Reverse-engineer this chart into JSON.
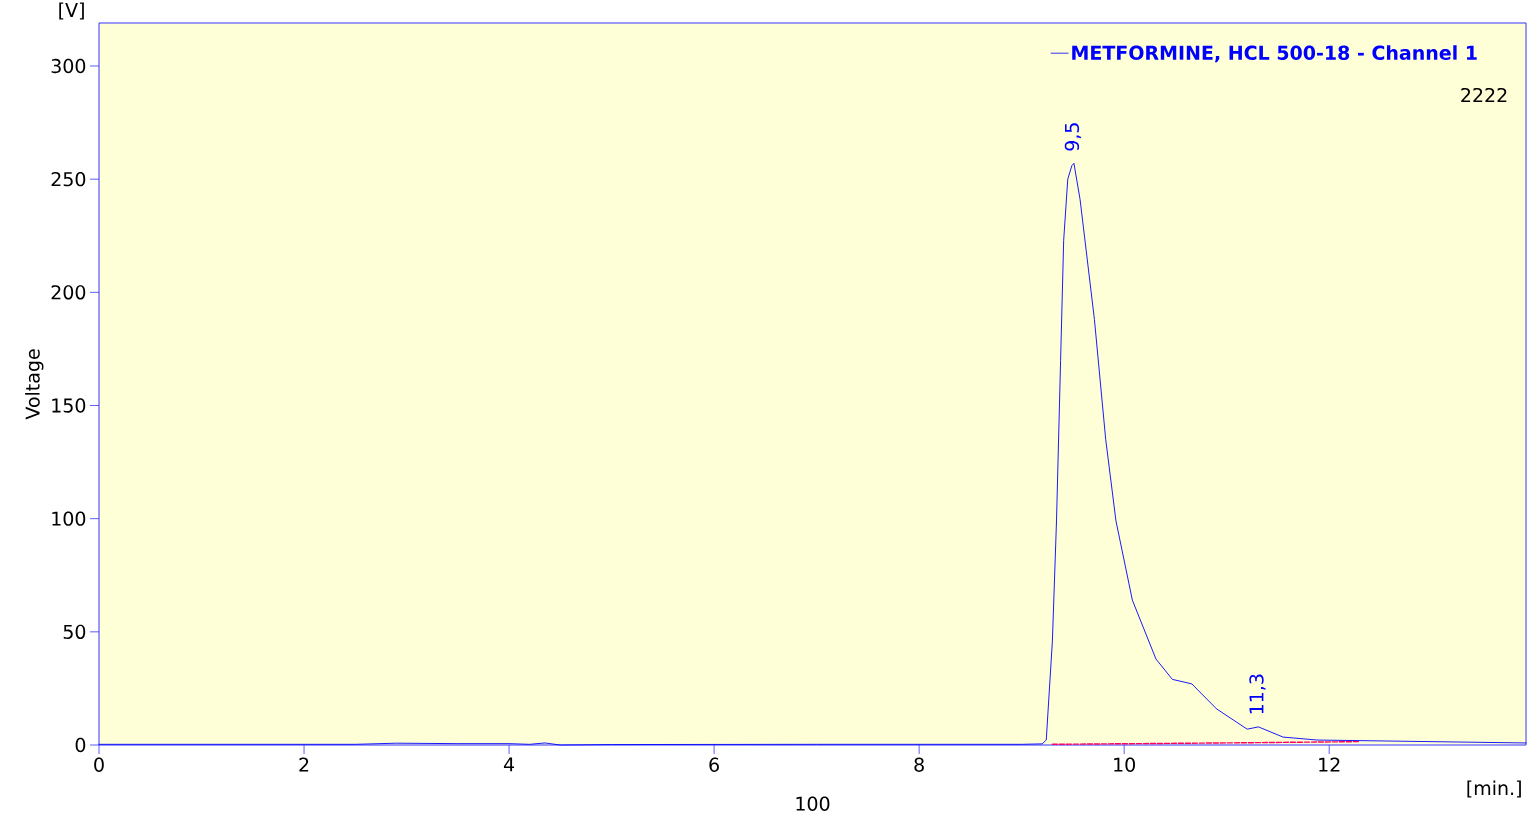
{
  "chart_data": {
    "type": "line",
    "ylabel": "Voltage",
    "xlabel": "[min.]",
    "annotations": [
      "[V]",
      "100",
      "2222",
      {
        "text": "9,5",
        "x": 9.5,
        "y": 257
      },
      {
        "text": "11,3",
        "x": 11.3,
        "y": 8
      }
    ],
    "xlim": [
      0,
      13.92
    ],
    "ylim": [
      0,
      319
    ],
    "xticks": [
      0,
      2,
      4,
      6,
      8,
      10,
      12
    ],
    "yticks": [
      0,
      50,
      100,
      150,
      200,
      250,
      300
    ],
    "legend": "top right",
    "marker": "none",
    "series": [
      {
        "name": "METFORMINE, HCL 500-18 -  Channel 1",
        "color": "#0000ff",
        "x": [
          0,
          2.5,
          2.9,
          3.5,
          4.0,
          4.2,
          4.35,
          4.5,
          5.0,
          7.0,
          9.0,
          9.2,
          9.24,
          9.3,
          9.34,
          9.38,
          9.41,
          9.45,
          9.49,
          9.51,
          9.57,
          9.71,
          9.82,
          9.92,
          10.08,
          10.31,
          10.47,
          10.66,
          10.9,
          11.2,
          11.31,
          11.55,
          11.88,
          13.92
        ],
        "values": [
          0.3,
          0.3,
          0.8,
          0.6,
          0.6,
          0.3,
          0.9,
          0,
          0.2,
          0.3,
          0.3,
          0.5,
          2.2,
          46,
          99,
          170,
          223,
          250,
          256,
          257,
          241,
          188,
          135,
          99,
          64,
          38,
          29,
          27,
          16,
          7,
          8,
          3.5,
          2.2,
          0.9
        ]
      },
      {
        "color": "#ff0066",
        "line_style": "dashed",
        "x": [
          9.3,
          11.2,
          12.3
        ],
        "values": [
          0.3,
          1.0,
          1.5
        ]
      }
    ]
  }
}
